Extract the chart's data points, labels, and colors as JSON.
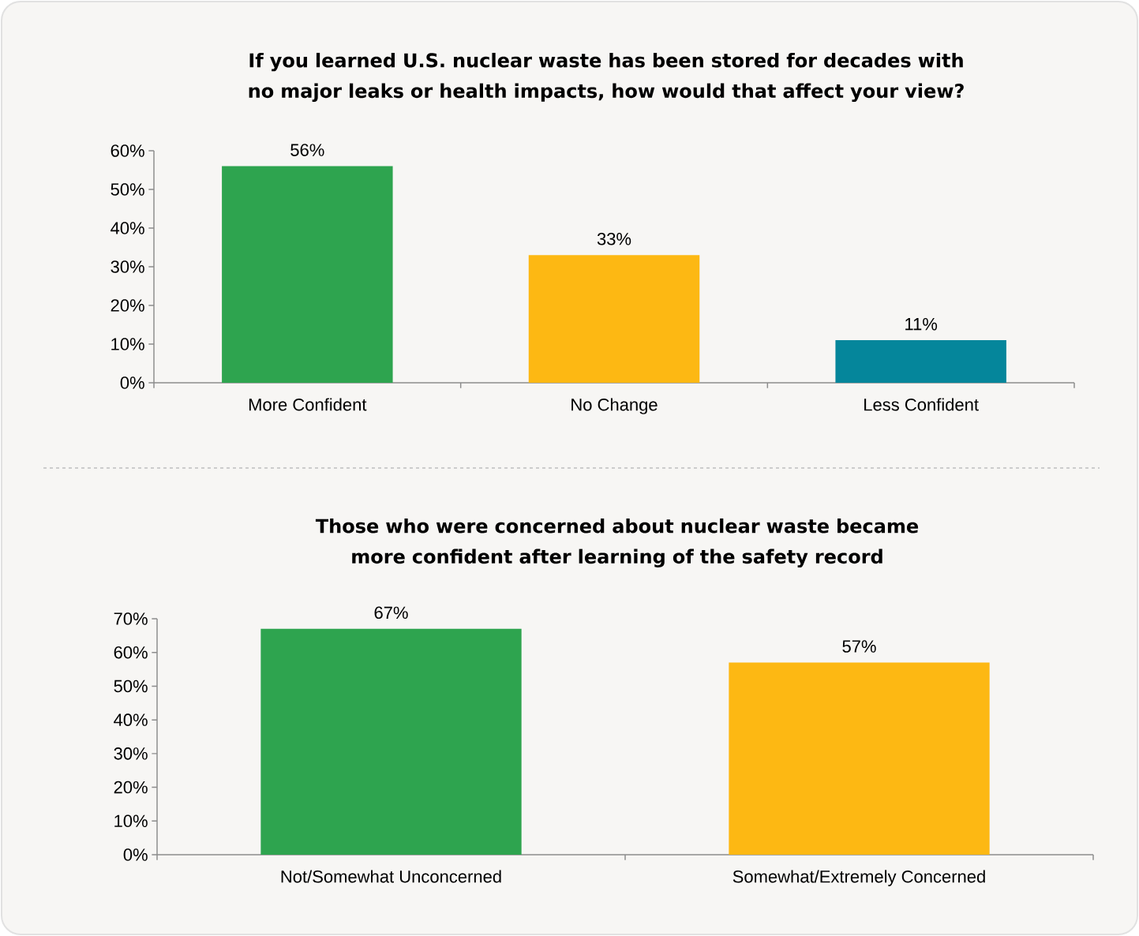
{
  "chart_data": [
    {
      "type": "bar",
      "title": "If you learned U.S. nuclear waste has been stored for decades with no major leaks or health impacts, how would that affect your view?",
      "categories": [
        "More Confident",
        "No Change",
        "Less Confident"
      ],
      "values": [
        56,
        33,
        11
      ],
      "colors": [
        "#2ea44f",
        "#fdb813",
        "#05869b"
      ],
      "value_labels": [
        "56%",
        "33%",
        "11%"
      ],
      "ylim": [
        0,
        60
      ],
      "yticks": [
        {
          "value": 0,
          "label": "0%"
        },
        {
          "value": 10,
          "label": "10%"
        },
        {
          "value": 20,
          "label": "20%"
        },
        {
          "value": 30,
          "label": "30%"
        },
        {
          "value": 40,
          "label": "40%"
        },
        {
          "value": 50,
          "label": "50%"
        },
        {
          "value": 60,
          "label": "60%"
        }
      ]
    },
    {
      "type": "bar",
      "title": "Those who were concerned about nuclear waste became more confident after learning of the safety record",
      "categories": [
        "Not/Somewhat Unconcerned",
        "Somewhat/Extremely Concerned"
      ],
      "values": [
        67,
        57
      ],
      "colors": [
        "#2ea44f",
        "#fdb813"
      ],
      "value_labels": [
        "67%",
        "57%"
      ],
      "ylim": [
        0,
        70
      ],
      "yticks": [
        {
          "value": 0,
          "label": "0%"
        },
        {
          "value": 10,
          "label": "10%"
        },
        {
          "value": 20,
          "label": "20%"
        },
        {
          "value": 30,
          "label": "30%"
        },
        {
          "value": 40,
          "label": "40%"
        },
        {
          "value": 50,
          "label": "50%"
        },
        {
          "value": 60,
          "label": "60%"
        },
        {
          "value": 70,
          "label": "70%"
        }
      ]
    }
  ]
}
